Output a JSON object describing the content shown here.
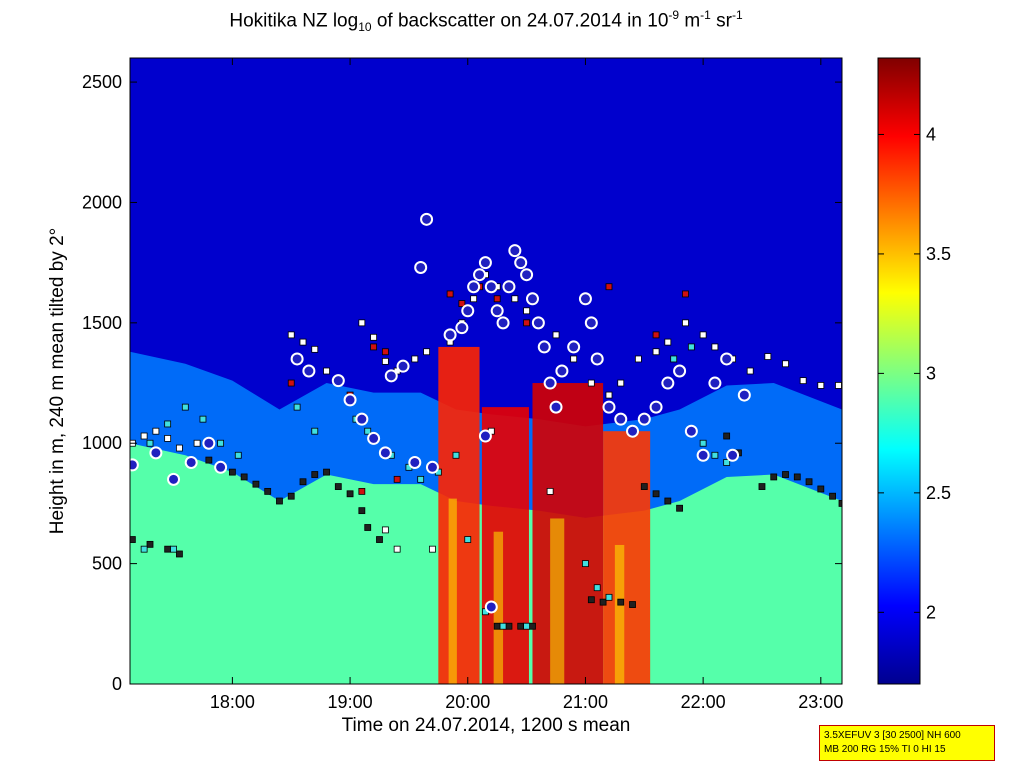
{
  "chart_data": {
    "type": "heatmap",
    "title_parts": {
      "pre": "Hokitika NZ log",
      "sub": "10",
      "mid": " of backscatter on 24.07.2014 in 10",
      "sup1": "-9",
      "mid2": " m",
      "sup2": "-1",
      "mid3": " sr",
      "sup3": "-1"
    },
    "xlabel": "Time on 24.07.2014, 1200 s mean",
    "ylabel": "Height in m, 240 m mean tilted by 2°",
    "xlim": [
      17.13,
      23.18
    ],
    "ylim": [
      0,
      2600
    ],
    "x_ticks": [
      18,
      19,
      20,
      21,
      22,
      23
    ],
    "x_tick_labels": [
      "18:00",
      "19:00",
      "20:00",
      "21:00",
      "22:00",
      "23:00"
    ],
    "y_ticks": [
      0,
      500,
      1000,
      1500,
      2000,
      2500
    ],
    "y_tick_labels": [
      "0",
      "500",
      "1000",
      "1500",
      "2000",
      "2500"
    ],
    "colorbar": {
      "lim": [
        1.7,
        4.32
      ],
      "ticks": [
        2,
        2.5,
        3,
        3.5,
        4
      ],
      "tick_labels": [
        "2",
        "2.5",
        "3",
        "3.5",
        "4"
      ],
      "colormap": "jet"
    },
    "layers": {
      "clear_air_top": 2.35,
      "free_troposphere": 1.9,
      "surface_layer": 2.9
    },
    "boundary_layer_top": [
      [
        17.13,
        1000
      ],
      [
        17.6,
        950
      ],
      [
        18.0,
        880
      ],
      [
        18.4,
        760
      ],
      [
        18.8,
        870
      ],
      [
        19.2,
        830
      ],
      [
        19.6,
        830
      ],
      [
        19.9,
        760
      ],
      [
        20.2,
        740
      ],
      [
        20.6,
        720
      ],
      [
        21.0,
        690
      ],
      [
        21.5,
        720
      ],
      [
        21.8,
        760
      ],
      [
        22.2,
        860
      ],
      [
        22.6,
        870
      ],
      [
        23.18,
        760
      ]
    ],
    "precipitation_shafts": [
      {
        "x0": 20.12,
        "x1": 20.52,
        "top": 1150,
        "value": 4.05
      },
      {
        "x0": 20.55,
        "x1": 21.15,
        "top": 1250,
        "value": 4.1
      },
      {
        "x0": 21.15,
        "x1": 21.55,
        "top": 1050,
        "value": 3.85
      },
      {
        "x0": 19.75,
        "x1": 20.1,
        "top": 1400,
        "value": 3.9
      }
    ],
    "series": [
      {
        "name": "cloud base (white squares)",
        "marker": "square",
        "color": "#ffffff",
        "points": [
          [
            17.15,
            1000
          ],
          [
            17.25,
            1030
          ],
          [
            17.35,
            1050
          ],
          [
            17.45,
            1020
          ],
          [
            17.55,
            980
          ],
          [
            17.7,
            1000
          ],
          [
            18.5,
            1450
          ],
          [
            18.6,
            1420
          ],
          [
            18.7,
            1390
          ],
          [
            18.8,
            1300
          ],
          [
            19.1,
            1500
          ],
          [
            19.2,
            1440
          ],
          [
            19.3,
            1340
          ],
          [
            19.4,
            1300
          ],
          [
            19.55,
            1350
          ],
          [
            19.65,
            1380
          ],
          [
            19.85,
            1420
          ],
          [
            19.95,
            1500
          ],
          [
            20.05,
            1600
          ],
          [
            20.15,
            1700
          ],
          [
            20.25,
            1650
          ],
          [
            20.4,
            1600
          ],
          [
            20.5,
            1550
          ],
          [
            20.6,
            1500
          ],
          [
            20.75,
            1450
          ],
          [
            20.9,
            1350
          ],
          [
            21.05,
            1250
          ],
          [
            21.2,
            1200
          ],
          [
            21.3,
            1250
          ],
          [
            21.45,
            1350
          ],
          [
            21.6,
            1380
          ],
          [
            21.7,
            1420
          ],
          [
            21.85,
            1500
          ],
          [
            22.0,
            1450
          ],
          [
            22.1,
            1400
          ],
          [
            22.25,
            1350
          ],
          [
            22.4,
            1300
          ],
          [
            22.55,
            1360
          ],
          [
            22.7,
            1330
          ],
          [
            22.85,
            1260
          ],
          [
            23.0,
            1240
          ],
          [
            23.15,
            1240
          ],
          [
            19.3,
            640
          ],
          [
            19.4,
            560
          ],
          [
            19.7,
            560
          ],
          [
            20.2,
            1050
          ],
          [
            20.7,
            800
          ]
        ]
      },
      {
        "name": "aerosol layer (black squares)",
        "marker": "square",
        "color": "#202020",
        "points": [
          [
            17.15,
            600
          ],
          [
            17.3,
            580
          ],
          [
            17.45,
            560
          ],
          [
            17.55,
            540
          ],
          [
            17.8,
            930
          ],
          [
            17.9,
            900
          ],
          [
            18.0,
            880
          ],
          [
            18.1,
            860
          ],
          [
            18.2,
            830
          ],
          [
            18.3,
            800
          ],
          [
            18.4,
            760
          ],
          [
            18.5,
            780
          ],
          [
            18.6,
            840
          ],
          [
            18.7,
            870
          ],
          [
            18.8,
            880
          ],
          [
            18.9,
            820
          ],
          [
            19.0,
            790
          ],
          [
            19.1,
            720
          ],
          [
            19.15,
            650
          ],
          [
            19.25,
            600
          ],
          [
            20.25,
            240
          ],
          [
            20.35,
            240
          ],
          [
            20.45,
            240
          ],
          [
            20.55,
            240
          ],
          [
            21.05,
            350
          ],
          [
            21.15,
            340
          ],
          [
            21.3,
            340
          ],
          [
            21.4,
            330
          ],
          [
            21.5,
            820
          ],
          [
            21.6,
            790
          ],
          [
            21.7,
            760
          ],
          [
            21.8,
            730
          ],
          [
            22.2,
            1030
          ],
          [
            22.3,
            960
          ],
          [
            22.5,
            820
          ],
          [
            22.6,
            860
          ],
          [
            22.7,
            870
          ],
          [
            22.8,
            860
          ],
          [
            22.9,
            840
          ],
          [
            23.0,
            810
          ],
          [
            23.1,
            780
          ],
          [
            23.18,
            750
          ]
        ]
      },
      {
        "name": "second layer (cyan squares)",
        "marker": "square",
        "color": "#40e0e0",
        "points": [
          [
            17.3,
            1000
          ],
          [
            17.45,
            1080
          ],
          [
            17.6,
            1150
          ],
          [
            17.75,
            1100
          ],
          [
            17.9,
            1000
          ],
          [
            18.05,
            950
          ],
          [
            19.35,
            950
          ],
          [
            19.5,
            900
          ],
          [
            19.6,
            850
          ],
          [
            19.75,
            880
          ],
          [
            19.9,
            950
          ],
          [
            20.0,
            600
          ],
          [
            20.15,
            300
          ],
          [
            20.3,
            240
          ],
          [
            20.5,
            240
          ],
          [
            21.0,
            500
          ],
          [
            21.1,
            400
          ],
          [
            21.2,
            360
          ],
          [
            21.9,
            1050
          ],
          [
            22.0,
            1000
          ],
          [
            22.1,
            950
          ],
          [
            22.2,
            920
          ],
          [
            17.25,
            560
          ],
          [
            17.5,
            560
          ],
          [
            18.55,
            1150
          ],
          [
            18.7,
            1050
          ],
          [
            19.05,
            1100
          ],
          [
            19.15,
            1050
          ],
          [
            21.75,
            1350
          ],
          [
            21.9,
            1400
          ]
        ]
      },
      {
        "name": "cloud top (red squares)",
        "marker": "square",
        "color": "#d01010",
        "points": [
          [
            19.2,
            1400
          ],
          [
            19.3,
            1380
          ],
          [
            19.85,
            1620
          ],
          [
            19.95,
            1580
          ],
          [
            20.1,
            1650
          ],
          [
            20.25,
            1600
          ],
          [
            20.5,
            1500
          ],
          [
            21.2,
            1650
          ],
          [
            21.6,
            1450
          ],
          [
            21.85,
            1620
          ],
          [
            18.5,
            1250
          ],
          [
            19.0,
            1200
          ],
          [
            19.1,
            800
          ],
          [
            19.4,
            850
          ]
        ]
      },
      {
        "name": "cloud detections (blue circles)",
        "marker": "circle",
        "color": "#2020c0",
        "points": [
          [
            17.15,
            910
          ],
          [
            17.35,
            960
          ],
          [
            17.5,
            850
          ],
          [
            17.65,
            920
          ],
          [
            17.8,
            1000
          ],
          [
            17.9,
            900
          ],
          [
            18.55,
            1350
          ],
          [
            18.65,
            1300
          ],
          [
            18.9,
            1260
          ],
          [
            19.0,
            1180
          ],
          [
            19.1,
            1100
          ],
          [
            19.2,
            1020
          ],
          [
            19.3,
            960
          ],
          [
            19.35,
            1280
          ],
          [
            19.45,
            1320
          ],
          [
            19.55,
            920
          ],
          [
            19.6,
            1730
          ],
          [
            19.65,
            1930
          ],
          [
            19.7,
            900
          ],
          [
            19.85,
            1450
          ],
          [
            19.95,
            1480
          ],
          [
            20.0,
            1550
          ],
          [
            20.05,
            1650
          ],
          [
            20.1,
            1700
          ],
          [
            20.15,
            1750
          ],
          [
            20.2,
            1650
          ],
          [
            20.25,
            1550
          ],
          [
            20.3,
            1500
          ],
          [
            20.35,
            1650
          ],
          [
            20.4,
            1800
          ],
          [
            20.45,
            1750
          ],
          [
            20.5,
            1700
          ],
          [
            20.55,
            1600
          ],
          [
            20.6,
            1500
          ],
          [
            20.65,
            1400
          ],
          [
            20.7,
            1250
          ],
          [
            20.75,
            1150
          ],
          [
            20.8,
            1300
          ],
          [
            20.9,
            1400
          ],
          [
            21.0,
            1600
          ],
          [
            21.05,
            1500
          ],
          [
            21.1,
            1350
          ],
          [
            21.2,
            1150
          ],
          [
            21.3,
            1100
          ],
          [
            21.4,
            1050
          ],
          [
            21.5,
            1100
          ],
          [
            21.6,
            1150
          ],
          [
            21.7,
            1250
          ],
          [
            21.8,
            1300
          ],
          [
            21.9,
            1050
          ],
          [
            22.0,
            950
          ],
          [
            22.1,
            1250
          ],
          [
            22.2,
            1350
          ],
          [
            22.25,
            950
          ],
          [
            22.35,
            1200
          ],
          [
            20.15,
            1030
          ],
          [
            20.2,
            320
          ]
        ]
      }
    ]
  },
  "info_box": {
    "line1": "3.5XEFUV 3 [30 2500] NH 600",
    "line2": "MB 200 RG 15% TI 0 HI 15"
  }
}
